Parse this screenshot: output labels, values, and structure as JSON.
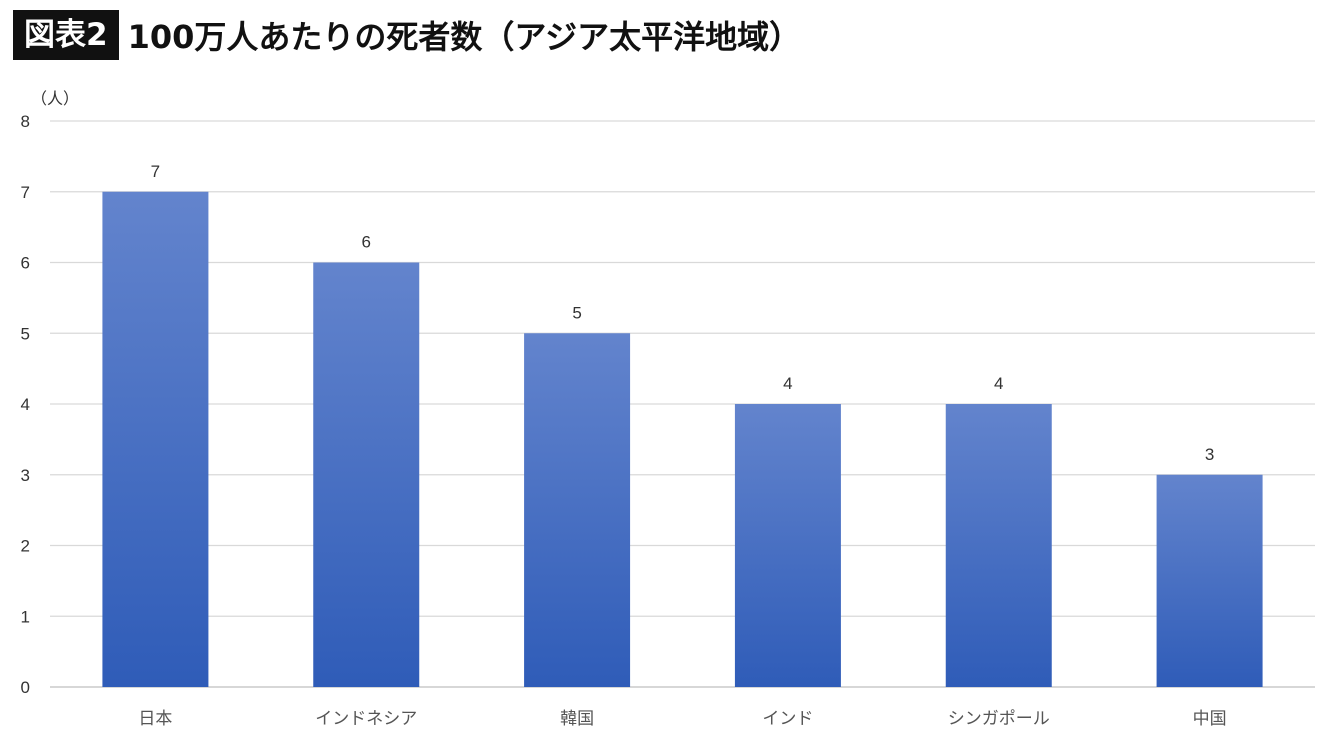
{
  "header": {
    "tag": "図表2",
    "title": "100万人あたりの死者数（アジア太平洋地域）"
  },
  "colors": {
    "bar_top": "#6384cd",
    "bar_bottom": "#2f5cb8",
    "grid": "#d9d9d9",
    "axis": "#bfbfbf"
  },
  "chart_data": {
    "type": "bar",
    "title": "100万人あたりの死者数（アジア太平洋地域）",
    "xlabel": "",
    "ylabel": "（人）",
    "categories": [
      "日本",
      "インドネシア",
      "韓国",
      "インド",
      "シンガポール",
      "中国"
    ],
    "values": [
      7,
      6,
      5,
      4,
      4,
      3
    ],
    "data_labels": [
      "7",
      "6",
      "5",
      "4",
      "4",
      "3"
    ],
    "ylim": [
      0,
      8
    ],
    "yticks": [
      "0",
      "1",
      "2",
      "3",
      "4",
      "5",
      "6",
      "7",
      "8"
    ],
    "grid": true,
    "legend": "none"
  }
}
